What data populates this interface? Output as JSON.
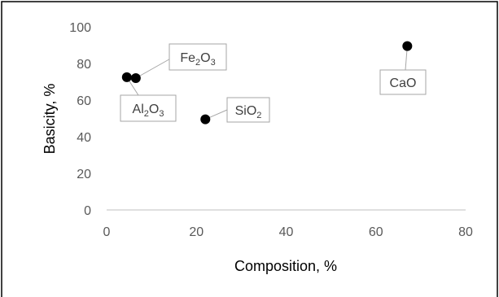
{
  "chart_data": {
    "type": "scatter",
    "xlabel": "Composition, %",
    "ylabel": "Basicity, %",
    "xlim": [
      0,
      80
    ],
    "ylim": [
      0,
      100
    ],
    "x_ticks": [
      0,
      20,
      40,
      60,
      80
    ],
    "y_ticks": [
      0,
      20,
      40,
      60,
      80,
      100
    ],
    "grid": false,
    "marker_color": "#000000",
    "points": [
      {
        "label": "Al2O3",
        "label_parts": [
          {
            "t": "Al"
          },
          {
            "t": "2",
            "sub": true
          },
          {
            "t": "O"
          },
          {
            "t": "3",
            "sub": true
          }
        ],
        "x": 4.5,
        "y": 72.5
      },
      {
        "label": "Fe2O3",
        "label_parts": [
          {
            "t": "Fe"
          },
          {
            "t": "2",
            "sub": true
          },
          {
            "t": "O"
          },
          {
            "t": "3",
            "sub": true
          }
        ],
        "x": 6.5,
        "y": 72
      },
      {
        "label": "SiO2",
        "label_parts": [
          {
            "t": "SiO"
          },
          {
            "t": "2",
            "sub": true
          }
        ],
        "x": 22,
        "y": 49.5
      },
      {
        "label": "CaO",
        "label_parts": [
          {
            "t": "CaO"
          }
        ],
        "x": 67,
        "y": 89.5
      }
    ]
  }
}
